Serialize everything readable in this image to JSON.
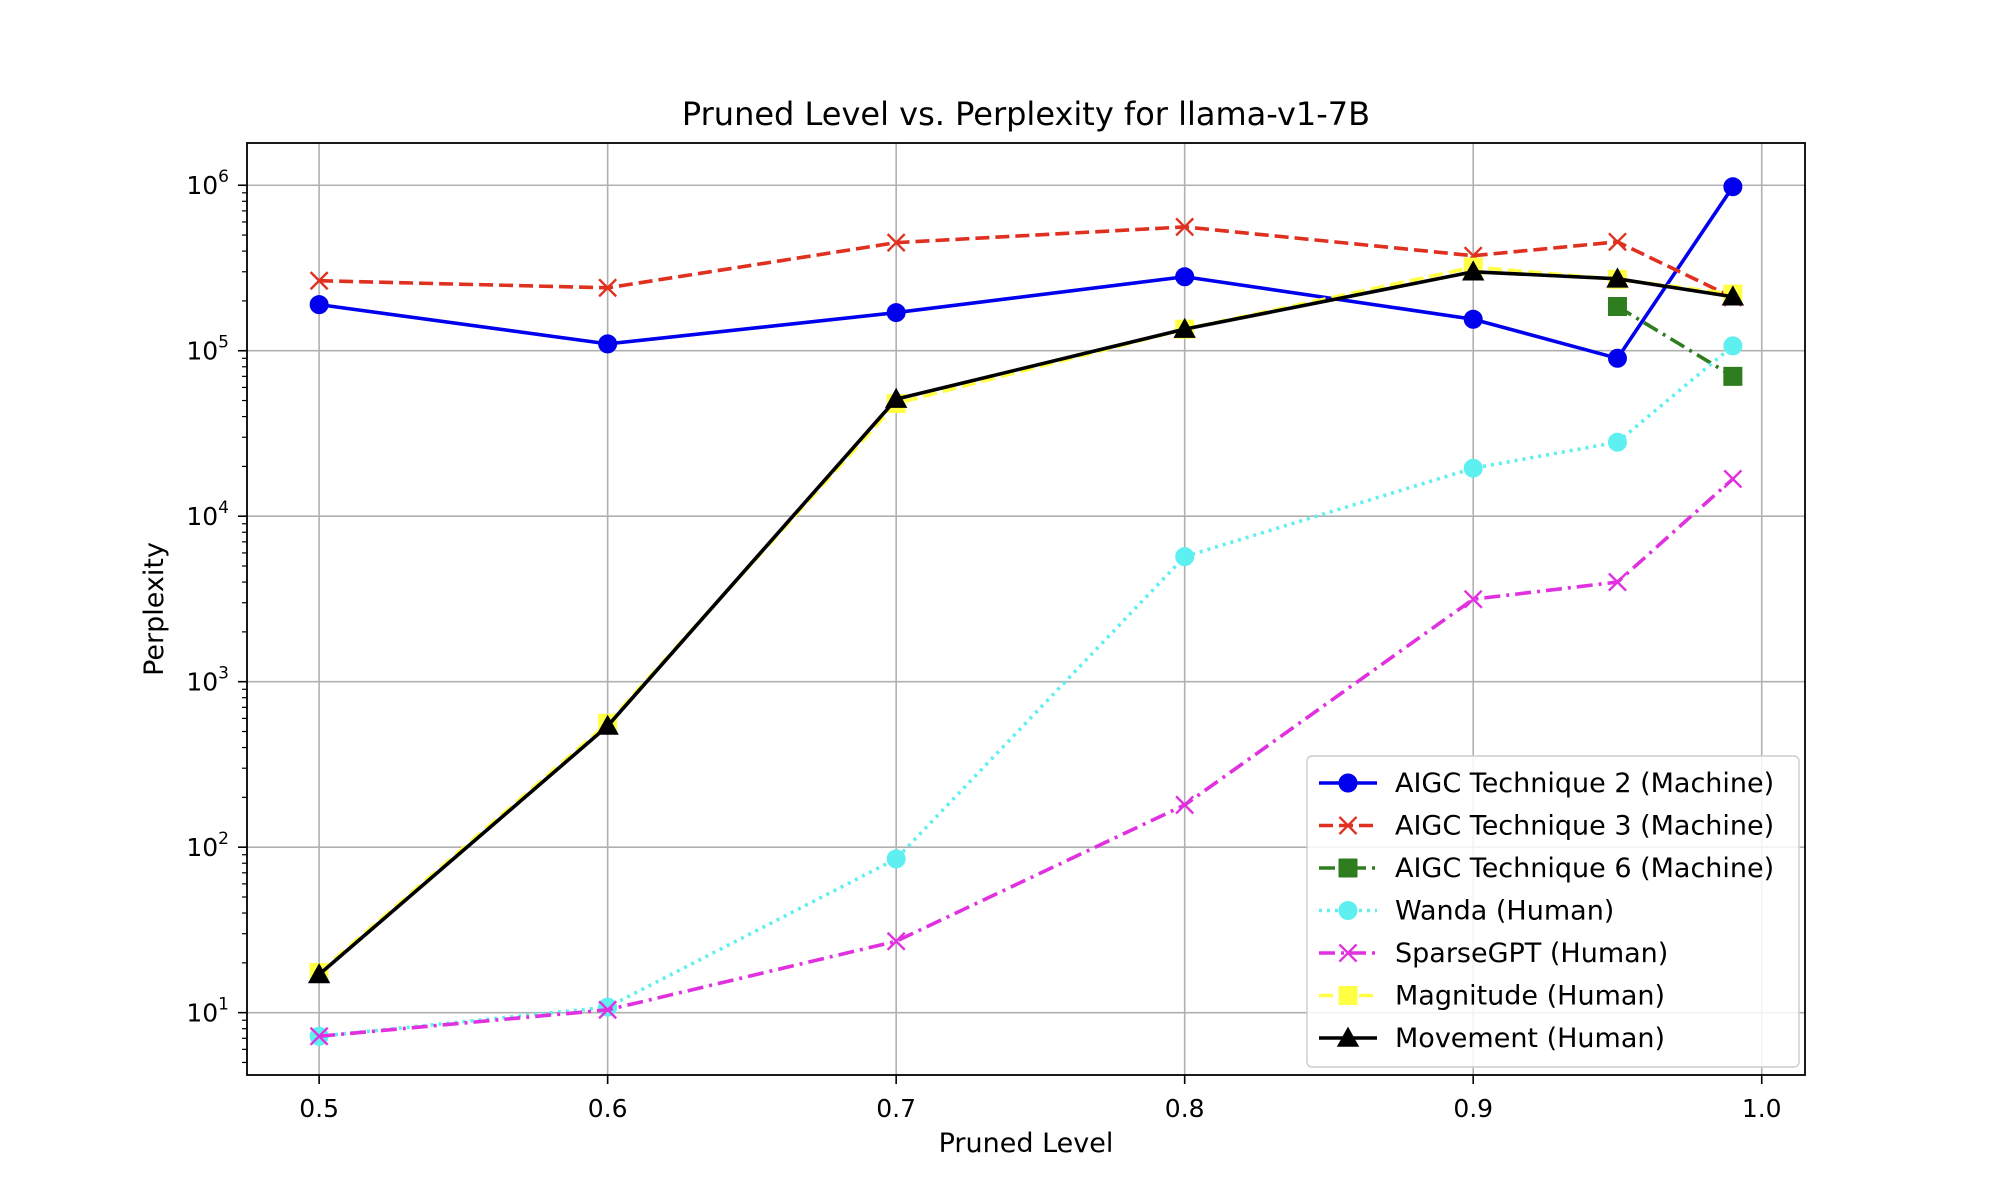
{
  "chart_data": {
    "type": "line",
    "title": "Pruned Level vs. Perplexity for llama-v1-7B",
    "xlabel": "Pruned Level",
    "ylabel": "Perplexity",
    "xlim": [
      0.475,
      1.015
    ],
    "ylim": [
      4.2,
      1800000
    ],
    "yscale": "log",
    "grid": true,
    "legend_position": "lower-right",
    "xticks": [
      "0.5",
      "0.6",
      "0.7",
      "0.8",
      "0.9",
      "1.0"
    ],
    "yticks": [
      {
        "base": "10",
        "exp": "1"
      },
      {
        "base": "10",
        "exp": "2"
      },
      {
        "base": "10",
        "exp": "3"
      },
      {
        "base": "10",
        "exp": "4"
      },
      {
        "base": "10",
        "exp": "5"
      },
      {
        "base": "10",
        "exp": "6"
      }
    ],
    "series": [
      {
        "name": "AIGC Technique 2 (Machine)",
        "color": "#0000ee",
        "line_style": "solid",
        "marker": "circle",
        "x": [
          0.5,
          0.6,
          0.7,
          0.8,
          0.9,
          0.95,
          0.99
        ],
        "y": [
          190000,
          110000,
          170000,
          280000,
          155000,
          90000,
          980000
        ]
      },
      {
        "name": "AIGC Technique 3 (Machine)",
        "color": "#e03020",
        "line_style": "dashed",
        "marker": "x",
        "x": [
          0.5,
          0.6,
          0.7,
          0.8,
          0.9,
          0.95,
          0.99
        ],
        "y": [
          265000,
          240000,
          450000,
          560000,
          375000,
          455000,
          210000
        ]
      },
      {
        "name": "AIGC Technique 6 (Machine)",
        "color": "#2e7d1e",
        "line_style": "dashdot",
        "marker": "square",
        "x": [
          0.95,
          0.99
        ],
        "y": [
          185000,
          70000
        ]
      },
      {
        "name": "Wanda (Human)",
        "color": "#5ef0f0",
        "line_style": "dotted",
        "marker": "circle",
        "x": [
          0.5,
          0.6,
          0.7,
          0.8,
          0.9,
          0.95,
          0.99
        ],
        "y": [
          7.2,
          10.8,
          85,
          5700,
          19500,
          28000,
          107000
        ]
      },
      {
        "name": "SparseGPT (Human)",
        "color": "#e030e0",
        "line_style": "dashdot",
        "marker": "x",
        "x": [
          0.5,
          0.6,
          0.7,
          0.8,
          0.9,
          0.95,
          0.99
        ],
        "y": [
          7.2,
          10.4,
          27,
          180,
          3150,
          4000,
          16800
        ]
      },
      {
        "name": "Magnitude (Human)",
        "color": "#ffff44",
        "line_style": "dashed",
        "marker": "square",
        "x": [
          0.5,
          0.6,
          0.7,
          0.8,
          0.9,
          0.95,
          0.99
        ],
        "y": [
          17.5,
          560,
          48000,
          135000,
          320000,
          270000,
          220000
        ]
      },
      {
        "name": "Movement (Human)",
        "color": "#000000",
        "line_style": "solid",
        "marker": "triangle",
        "x": [
          0.5,
          0.6,
          0.7,
          0.8,
          0.9,
          0.95,
          0.99
        ],
        "y": [
          17,
          540,
          51000,
          135000,
          300000,
          272000,
          212000
        ]
      }
    ]
  }
}
